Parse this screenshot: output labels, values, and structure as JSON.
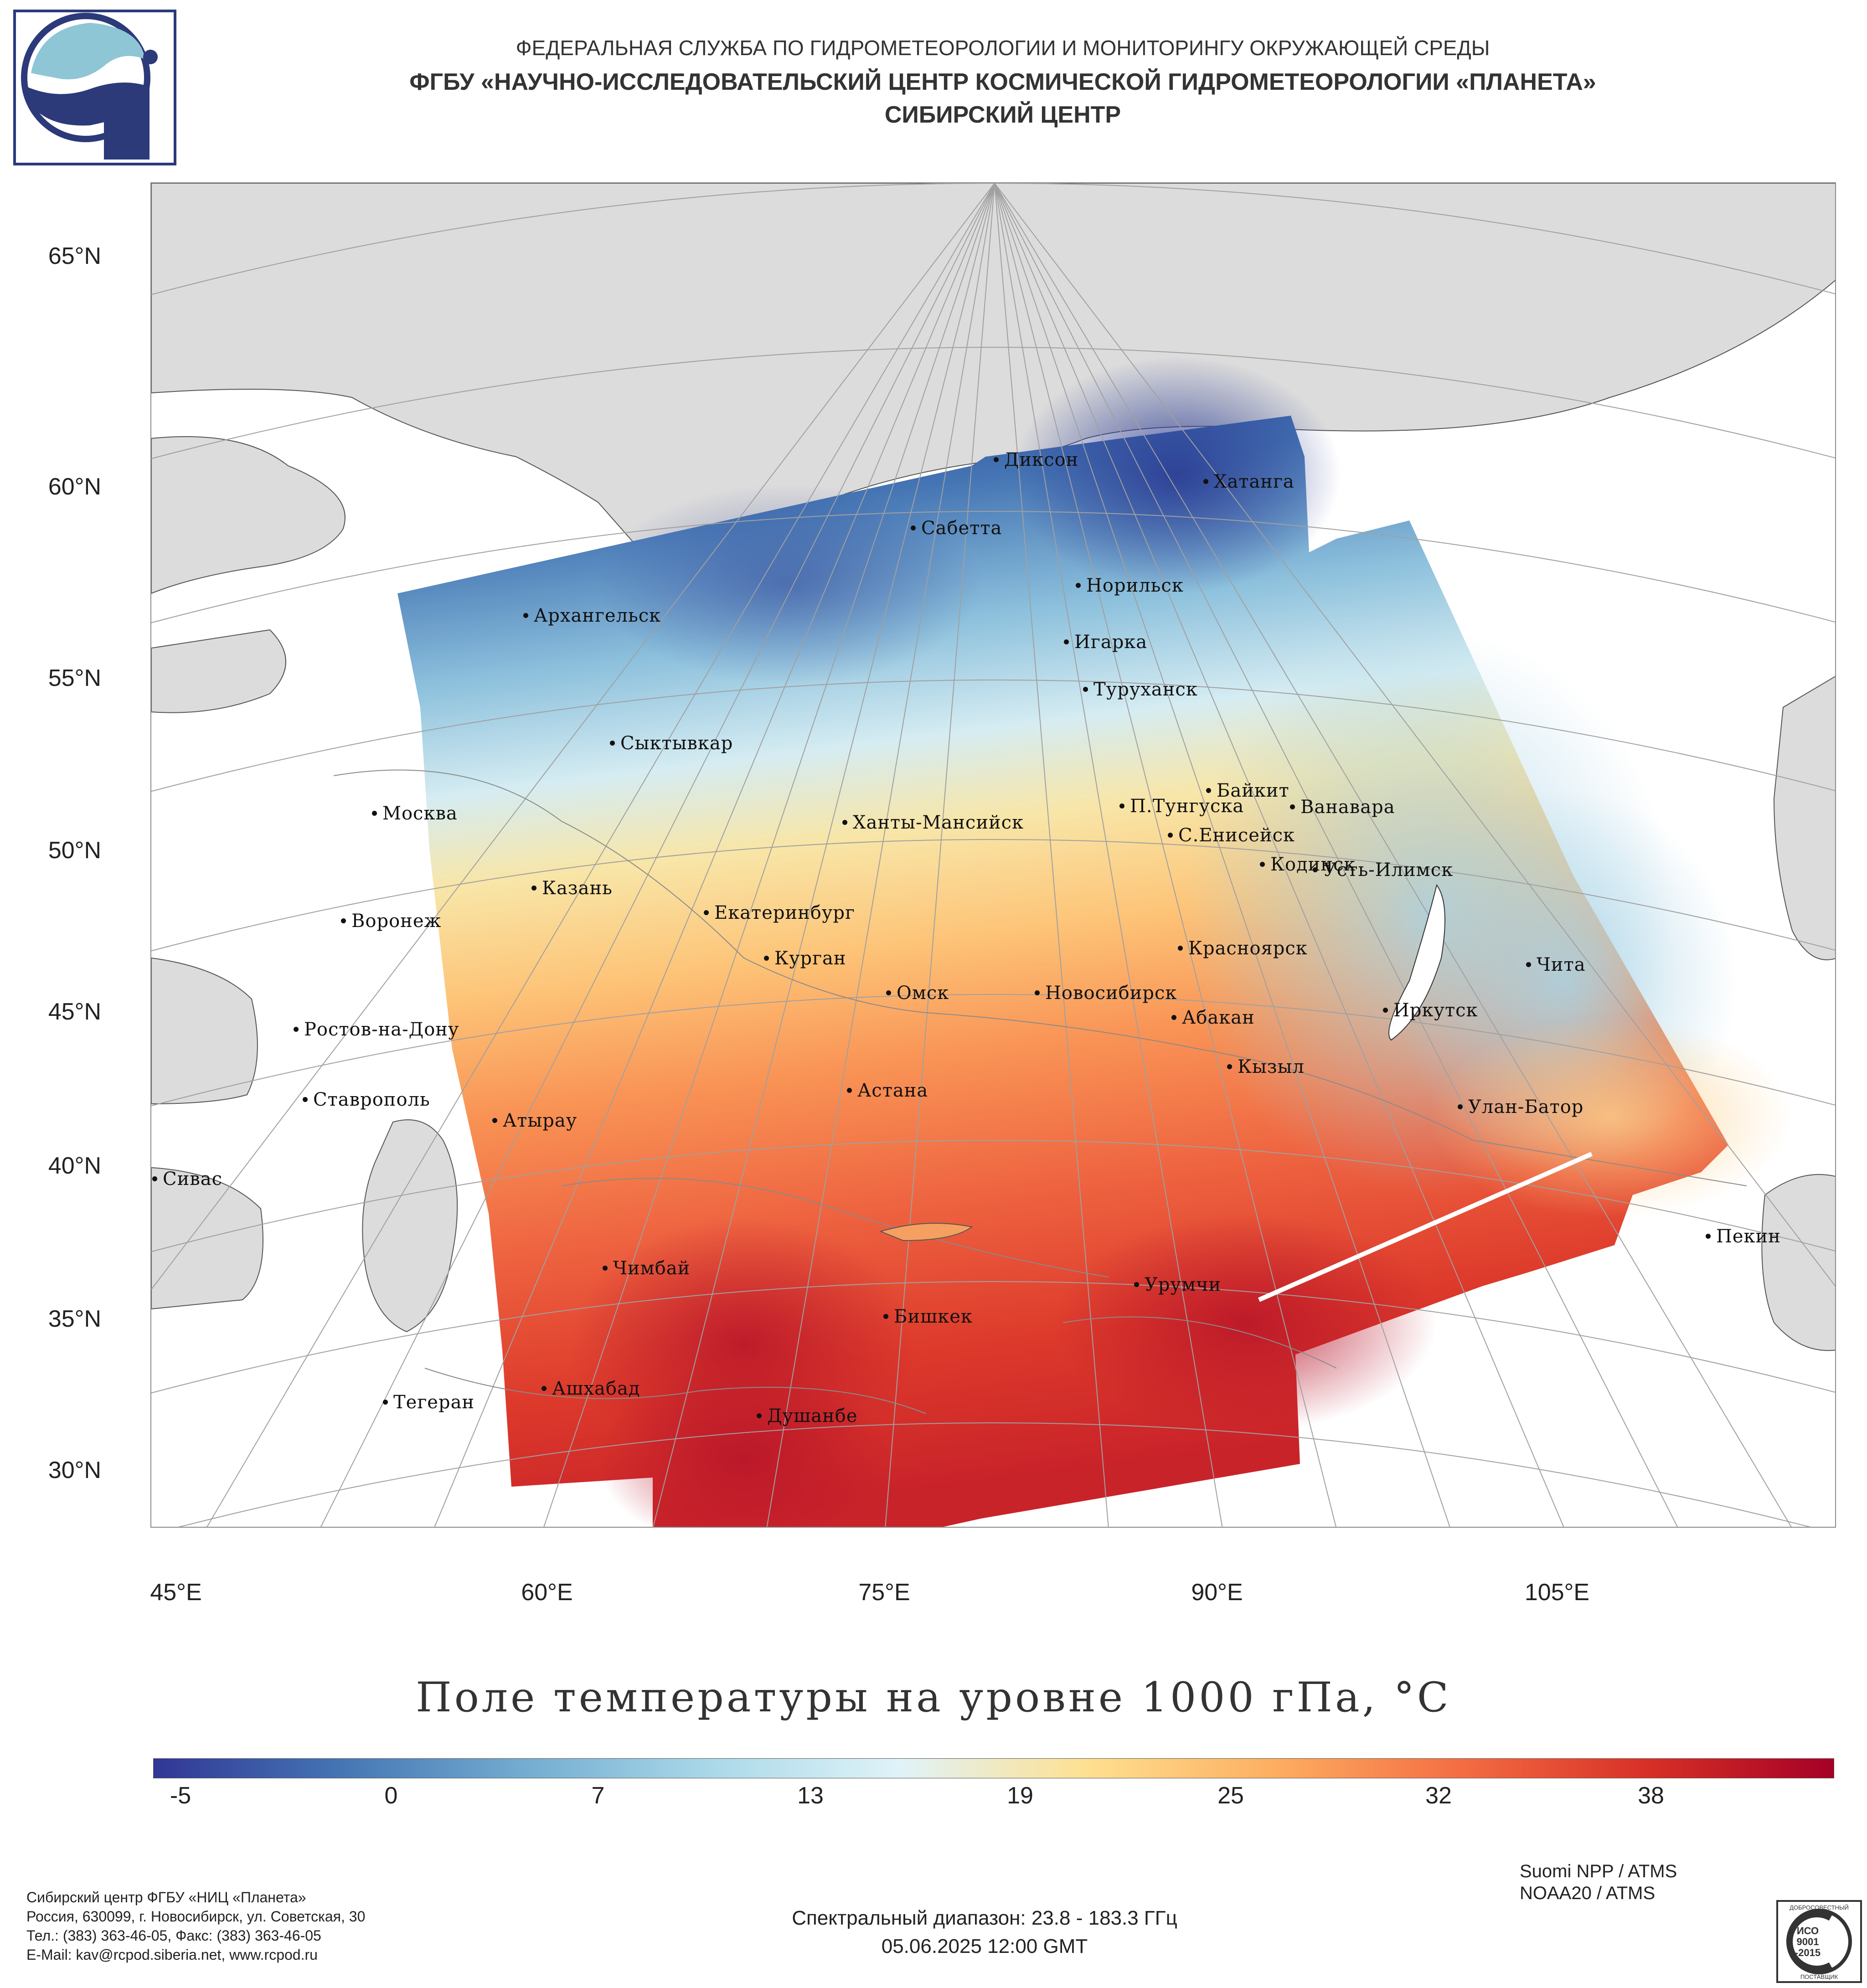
{
  "header": {
    "line1": "ФЕДЕРАЛЬНАЯ СЛУЖБА ПО ГИДРОМЕТЕОРОЛОГИИ И МОНИТОРИНГУ ОКРУЖАЮЩЕЙ СРЕДЫ",
    "line2": "ФГБУ «НАУЧНО-ИССЛЕДОВАТЕЛЬСКИЙ ЦЕНТР КОСМИЧЕСКОЙ ГИДРОМЕТЕОРОЛОГИИ «ПЛАНЕТА»",
    "line3": "СИБИРСКИЙ ЦЕНТР",
    "logo_icon": "planeta-logo"
  },
  "map": {
    "lat_labels": [
      "65°N",
      "60°N",
      "55°N",
      "50°N",
      "45°N",
      "40°N",
      "35°N",
      "30°N"
    ],
    "lon_labels": [
      "45°E",
      "60°E",
      "75°E",
      "90°E",
      "105°E"
    ],
    "cities": [
      "Диксон",
      "Хатанга",
      "Сабетта",
      "Норильск",
      "Архангельск",
      "Игарка",
      "Туруханск",
      "Сыктывкар",
      "Байкит",
      "П.Тунгуска",
      "Ванавара",
      "Москва",
      "Ханты-Мансийск",
      "С.Енисейск",
      "Кодинск",
      "Усть-Илимск",
      "Казань",
      "Екатеринбург",
      "Воронеж",
      "Красноярск",
      "Курган",
      "Чита",
      "Омск",
      "Новосибирск",
      "Ростов-на-Дону",
      "Абакан",
      "Иркутск",
      "Кызыл",
      "Ставрополь",
      "Астана",
      "Улан-Батор",
      "Атырау",
      "Сивас",
      "Пекин",
      "Чимбай",
      "Урумчи",
      "Бишкек",
      "Ашхабад",
      "Тегеран",
      "Душанбе"
    ],
    "colors": {
      "land": "#dcdcdc",
      "sea": "#ffffff",
      "graticule": "#a0a0a0",
      "coast": "#555555"
    }
  },
  "legend": {
    "title": "Поле температуры на уровне 1000 гПа, °C",
    "ticks": [
      "-5",
      "0",
      "7",
      "13",
      "19",
      "25",
      "32",
      "38"
    ],
    "range_celsius": [
      -7,
      44
    ],
    "tick_values": [
      -5,
      0,
      7,
      13,
      19,
      25,
      32,
      38
    ],
    "colors": [
      "#313695",
      "#4575b4",
      "#74add1",
      "#abd9e9",
      "#e0f3f8",
      "#fee090",
      "#fdae61",
      "#f46d43",
      "#d73027",
      "#a50026"
    ]
  },
  "footer": {
    "org_line1": "Сибирский центр ФГБУ «НИЦ «Планета»",
    "org_line2": "Россия, 630099, г. Новосибирск, ул. Советская, 30",
    "org_line3": "Тел.: (383) 363-46-05, Факс: (383) 363-46-05",
    "org_line4": "E-Mail: kav@rcpod.siberia.net, www.rcpod.ru",
    "spectral": "Спектральный диапазон: 23.8 - 183.3 ГГц",
    "datetime": "05.06.2025 12:00 GMT",
    "sat1": "Suomi NPP / ATMS",
    "sat2": "NOAA20 / ATMS",
    "cert_icon": "iso-9001-2015-badge",
    "cert_lines": [
      "ДОБРОСОВЕСТНЫЙ",
      "ИСО",
      "9001",
      "-2015",
      "ПОСТАВЩИК"
    ]
  }
}
